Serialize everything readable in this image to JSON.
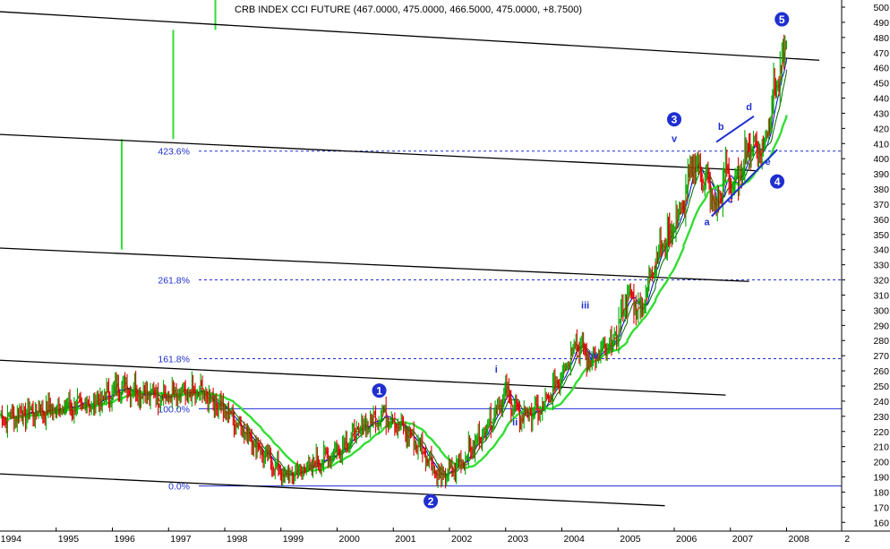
{
  "chart_data": {
    "type": "candlestick",
    "title": "CRB INDEX CCI FUTURE (467.0000, 475.0000, 466.5000, 475.0000, +8.7500)",
    "x_axis": {
      "type": "date",
      "ticks": [
        "1994",
        "1995",
        "1996",
        "1997",
        "1998",
        "1999",
        "2000",
        "2001",
        "2002",
        "2003",
        "2004",
        "2005",
        "2006",
        "2007",
        "2008",
        "2"
      ],
      "range": [
        "1994-01",
        "2008-12"
      ]
    },
    "y_axis": {
      "position": "right",
      "range": [
        152,
        505
      ],
      "ticks": [
        160,
        170,
        180,
        190,
        200,
        210,
        220,
        230,
        240,
        250,
        260,
        270,
        280,
        290,
        300,
        310,
        320,
        330,
        340,
        350,
        360,
        370,
        380,
        390,
        400,
        410,
        420,
        430,
        440,
        450,
        460,
        470,
        480,
        490,
        500
      ]
    },
    "price_path": [
      {
        "x": "1994-01",
        "y": 228
      },
      {
        "x": "1994-06",
        "y": 232
      },
      {
        "x": "1995-03",
        "y": 236
      },
      {
        "x": "1995-09",
        "y": 238
      },
      {
        "x": "1996-03",
        "y": 250
      },
      {
        "x": "1996-08",
        "y": 245
      },
      {
        "x": "1997-03",
        "y": 243
      },
      {
        "x": "1997-08",
        "y": 246
      },
      {
        "x": "1997-12",
        "y": 237
      },
      {
        "x": "1998-04",
        "y": 225
      },
      {
        "x": "1998-09",
        "y": 206
      },
      {
        "x": "1999-02",
        "y": 190
      },
      {
        "x": "1999-06",
        "y": 195
      },
      {
        "x": "2000-01",
        "y": 207
      },
      {
        "x": "2000-06",
        "y": 222
      },
      {
        "x": "2000-11",
        "y": 232
      },
      {
        "x": "2001-04",
        "y": 219
      },
      {
        "x": "2001-08",
        "y": 205
      },
      {
        "x": "2001-11",
        "y": 189
      },
      {
        "x": "2002-03",
        "y": 198
      },
      {
        "x": "2002-08",
        "y": 218
      },
      {
        "x": "2003-01",
        "y": 246
      },
      {
        "x": "2003-04",
        "y": 230
      },
      {
        "x": "2003-09",
        "y": 235
      },
      {
        "x": "2004-02",
        "y": 265
      },
      {
        "x": "2004-04",
        "y": 280
      },
      {
        "x": "2004-07",
        "y": 266
      },
      {
        "x": "2004-12",
        "y": 278
      },
      {
        "x": "2005-03",
        "y": 310
      },
      {
        "x": "2005-06",
        "y": 300
      },
      {
        "x": "2005-09",
        "y": 335
      },
      {
        "x": "2005-12",
        "y": 350
      },
      {
        "x": "2006-03",
        "y": 370
      },
      {
        "x": "2006-05",
        "y": 398
      },
      {
        "x": "2006-08",
        "y": 385
      },
      {
        "x": "2006-10",
        "y": 365
      },
      {
        "x": "2006-12",
        "y": 392
      },
      {
        "x": "2007-02",
        "y": 380
      },
      {
        "x": "2007-05",
        "y": 410
      },
      {
        "x": "2007-08",
        "y": 405
      },
      {
        "x": "2007-10",
        "y": 440
      },
      {
        "x": "2007-12",
        "y": 460
      },
      {
        "x": "2008-01",
        "y": 475
      }
    ],
    "moving_averages": [
      {
        "color": "#ff0000",
        "role": "fast-ma"
      },
      {
        "color": "#0000cc",
        "role": "medium-ma"
      },
      {
        "color": "#006400",
        "role": "slow-ma"
      },
      {
        "color": "#33dd33",
        "role": "long-ma"
      }
    ],
    "channel_lines": [
      {
        "color": "#000000",
        "points": [
          {
            "x": "1994-01",
            "y": 497
          },
          {
            "x": "2008-08",
            "y": 465
          }
        ]
      },
      {
        "color": "#000000",
        "points": [
          {
            "x": "1994-01",
            "y": 416
          },
          {
            "x": "2007-07",
            "y": 392
          }
        ]
      },
      {
        "color": "#000000",
        "points": [
          {
            "x": "1994-01",
            "y": 341
          },
          {
            "x": "2007-05",
            "y": 319
          }
        ]
      },
      {
        "color": "#000000",
        "points": [
          {
            "x": "1994-01",
            "y": 267
          },
          {
            "x": "2006-12",
            "y": 244
          }
        ]
      },
      {
        "color": "#000000",
        "points": [
          {
            "x": "1994-01",
            "y": 192
          },
          {
            "x": "2005-11",
            "y": 171
          }
        ]
      }
    ],
    "triangle_lines": [
      {
        "points": [
          {
            "x": "2006-10",
            "y": 411
          },
          {
            "x": "2007-06",
            "y": 428
          }
        ]
      },
      {
        "points": [
          {
            "x": "2006-09",
            "y": 362
          },
          {
            "x": "2007-11",
            "y": 406
          }
        ]
      }
    ],
    "fib_levels": [
      {
        "label": "0.0%",
        "value": 184,
        "style": "solid"
      },
      {
        "label": "100.0%",
        "value": 235,
        "style": "solid"
      },
      {
        "label": "161.8%",
        "value": 268,
        "style": "dashed"
      },
      {
        "label": "261.8%",
        "value": 320,
        "style": "dashed"
      },
      {
        "label": "423.6%",
        "value": 405,
        "style": "dashed"
      }
    ],
    "projection_bars": [
      {
        "x": "1996-03",
        "from": 340,
        "to": 413
      },
      {
        "x": "1997-02",
        "from": 413,
        "to": 485
      },
      {
        "x": "1997-11",
        "from": 485,
        "to": 506
      }
    ],
    "wave_labels": {
      "primary": [
        {
          "label": "1",
          "x": "2000-10",
          "y": 247
        },
        {
          "label": "2",
          "x": "2001-09",
          "y": 174
        },
        {
          "label": "3",
          "x": "2006-01",
          "y": 426
        },
        {
          "label": "4",
          "x": "2007-11",
          "y": 385
        },
        {
          "label": "5",
          "x": "2007-12",
          "y": 492
        }
      ],
      "minor": [
        {
          "label": "i",
          "x": "2002-11",
          "y": 259
        },
        {
          "label": "ii",
          "x": "2003-03",
          "y": 224
        },
        {
          "label": "iii",
          "x": "2004-06",
          "y": 301
        },
        {
          "label": "iv",
          "x": "2004-08",
          "y": 268
        },
        {
          "label": "v",
          "x": "2006-01",
          "y": 411
        }
      ],
      "sub": [
        {
          "label": "a",
          "x": "2006-08",
          "y": 356
        },
        {
          "label": "b",
          "x": "2006-11",
          "y": 419
        },
        {
          "label": "c",
          "x": "2007-01",
          "y": 371
        },
        {
          "label": "d",
          "x": "2007-05",
          "y": 432
        },
        {
          "label": "e",
          "x": "2007-09",
          "y": 396
        }
      ]
    },
    "bar_colors": {
      "up": "#00aa00",
      "down": "#dd0000"
    }
  }
}
